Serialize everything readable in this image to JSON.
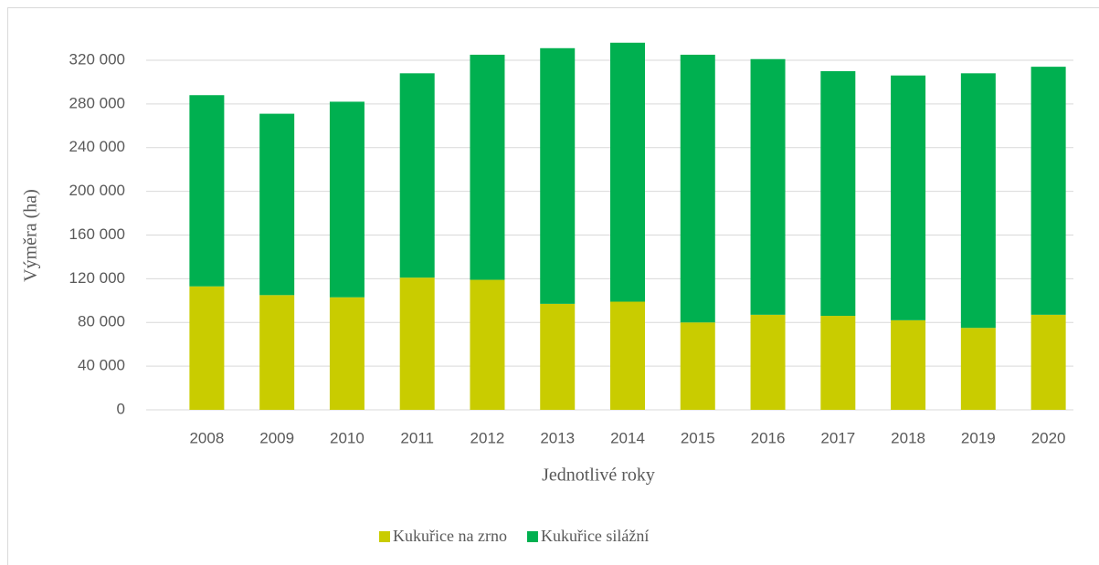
{
  "chart_data": {
    "type": "bar",
    "stacked": true,
    "x_label": "Jednotlivé roky",
    "y_label": "Výměra (ha)",
    "categories": [
      "2008",
      "2009",
      "2010",
      "2011",
      "2012",
      "2013",
      "2014",
      "2015",
      "2016",
      "2017",
      "2018",
      "2019",
      "2020"
    ],
    "series": [
      {
        "name": "Kukuřice na zrno",
        "color": "#c9cc00",
        "values": [
          113000,
          105000,
          103000,
          121000,
          119000,
          97000,
          99000,
          80000,
          87000,
          86000,
          82000,
          75000,
          87000
        ]
      },
      {
        "name": "Kukuřice silážní",
        "color": "#00b050",
        "values": [
          175000,
          166000,
          179000,
          187000,
          206000,
          234000,
          237000,
          245000,
          234000,
          224000,
          224000,
          233000,
          227000
        ]
      }
    ],
    "ylim": [
      0,
      340000
    ],
    "yticks": [
      0,
      {
        "value": 40000,
        "label": "40 000"
      },
      {
        "value": 80000,
        "label": "80 000"
      },
      {
        "value": 120000,
        "label": "120 000"
      },
      {
        "value": 160000,
        "label": "160 000"
      },
      {
        "value": 200000,
        "label": "200 000"
      },
      {
        "value": 240000,
        "label": "240 000"
      },
      {
        "value": 280000,
        "label": "280 000"
      },
      {
        "value": 320000,
        "label": "320 000"
      }
    ],
    "grid": true,
    "legend": "bottom"
  }
}
